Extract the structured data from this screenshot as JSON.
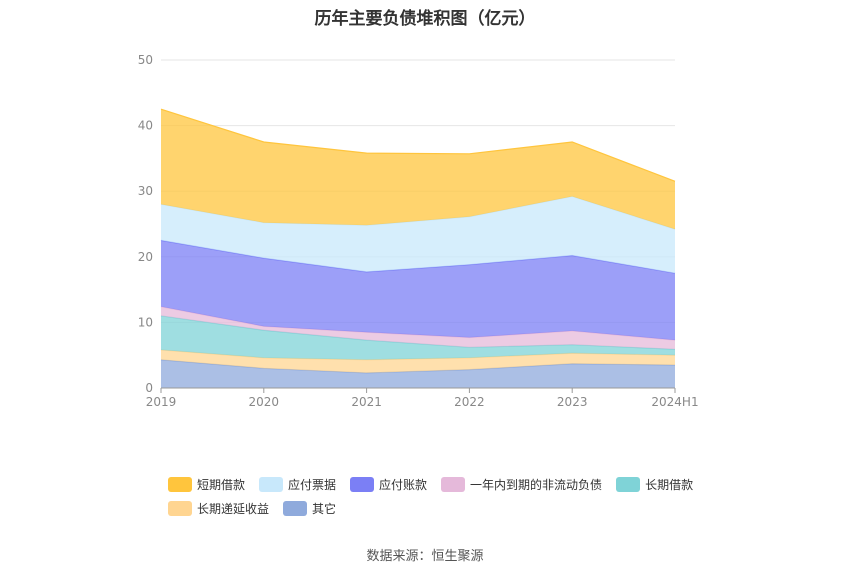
{
  "chart_data": {
    "type": "area",
    "stacked": true,
    "title": "历年主要负债堆积图（亿元）",
    "categories": [
      "2019",
      "2020",
      "2021",
      "2022",
      "2023",
      "2024H1"
    ],
    "ylim": [
      0,
      50
    ],
    "yticks": [
      0,
      10,
      20,
      30,
      40,
      50
    ],
    "grid": true,
    "legend_position": "bottom",
    "series": [
      {
        "name": "其它",
        "color": "#8faadc",
        "values": [
          4.3,
          3.0,
          2.3,
          2.8,
          3.7,
          3.5
        ]
      },
      {
        "name": "长期递延收益",
        "color": "#ffd591",
        "values": [
          1.5,
          1.6,
          2.0,
          1.8,
          1.6,
          1.5
        ]
      },
      {
        "name": "长期借款",
        "color": "#7fd3d7",
        "values": [
          5.2,
          4.2,
          3.0,
          1.6,
          1.3,
          0.9
        ]
      },
      {
        "name": "一年内到期的非流动负债",
        "color": "#e5b9da",
        "values": [
          1.4,
          0.6,
          1.2,
          1.5,
          2.1,
          1.4
        ]
      },
      {
        "name": "应付账款",
        "color": "#7b7ff5",
        "values": [
          10.1,
          10.4,
          9.2,
          11.1,
          11.5,
          10.2
        ]
      },
      {
        "name": "应付票据",
        "color": "#c8e8fb",
        "values": [
          5.5,
          5.4,
          7.1,
          7.3,
          9.0,
          6.7
        ]
      },
      {
        "name": "短期借款",
        "color": "#ffc53d",
        "values": [
          14.5,
          12.3,
          11.0,
          9.6,
          8.3,
          7.3
        ]
      }
    ]
  },
  "legend": {
    "row1": [
      {
        "label": "短期借款",
        "color": "#ffc53d"
      },
      {
        "label": "应付票据",
        "color": "#c8e8fb"
      },
      {
        "label": "应付账款",
        "color": "#7b7ff5"
      },
      {
        "label": "一年内到期的非流动负债",
        "color": "#e5b9da"
      },
      {
        "label": "长期借款",
        "color": "#7fd3d7"
      }
    ],
    "row2": [
      {
        "label": "长期递延收益",
        "color": "#ffd591"
      },
      {
        "label": "其它",
        "color": "#8faadc"
      }
    ]
  },
  "source_text": "数据来源：恒生聚源"
}
